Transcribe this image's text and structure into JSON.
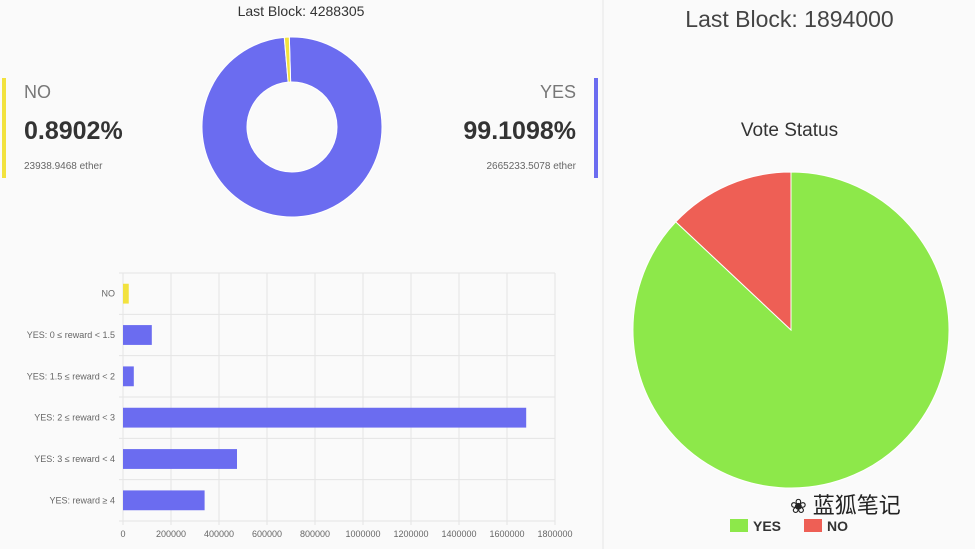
{
  "left": {
    "last_block": "Last Block: 4288305",
    "no": {
      "label": "NO",
      "percent": "0.8902%",
      "ether": "23938.9468 ether"
    },
    "yes": {
      "label": "YES",
      "percent": "99.1098%",
      "ether": "2665233.5078 ether"
    }
  },
  "right": {
    "last_block": "Last Block: 1894000",
    "title": "Vote Status",
    "legend": [
      {
        "label": "YES",
        "color": "#8de84a"
      },
      {
        "label": "NO",
        "color": "#ee5f55"
      }
    ]
  },
  "watermark": {
    "icon": "fox-logo-icon",
    "text": "蓝狐笔记"
  },
  "chart_data": [
    {
      "type": "pie",
      "title": "",
      "donut": true,
      "slices": [
        {
          "label": "YES",
          "value": 99.1098,
          "color": "#6b6cf0"
        },
        {
          "label": "NO",
          "value": 0.8902,
          "color": "#f2e23e"
        }
      ]
    },
    {
      "type": "bar",
      "orientation": "horizontal",
      "title": "",
      "categories": [
        "NO",
        "YES: 0 ≤ reward < 1.5",
        "YES: 1.5 ≤ reward < 2",
        "YES: 2 ≤ reward < 3",
        "YES: 3 ≤ reward < 4",
        "YES: reward ≥ 4"
      ],
      "values": [
        23939,
        120000,
        45000,
        1680000,
        475000,
        340000
      ],
      "colors": [
        "#f2e23e",
        "#6b6cf0",
        "#6b6cf0",
        "#6b6cf0",
        "#6b6cf0",
        "#6b6cf0"
      ],
      "xlim": [
        0,
        1800000
      ],
      "xticks": [
        "0",
        "200000",
        "400000",
        "600000",
        "800000",
        "1000000",
        "1200000",
        "1400000",
        "1600000",
        "1800000"
      ],
      "grid": true
    },
    {
      "type": "pie",
      "title": "Vote Status",
      "slices": [
        {
          "label": "YES",
          "value": 87,
          "color": "#8de84a"
        },
        {
          "label": "NO",
          "value": 13,
          "color": "#ee5f55"
        }
      ],
      "legend": "bottom"
    }
  ]
}
